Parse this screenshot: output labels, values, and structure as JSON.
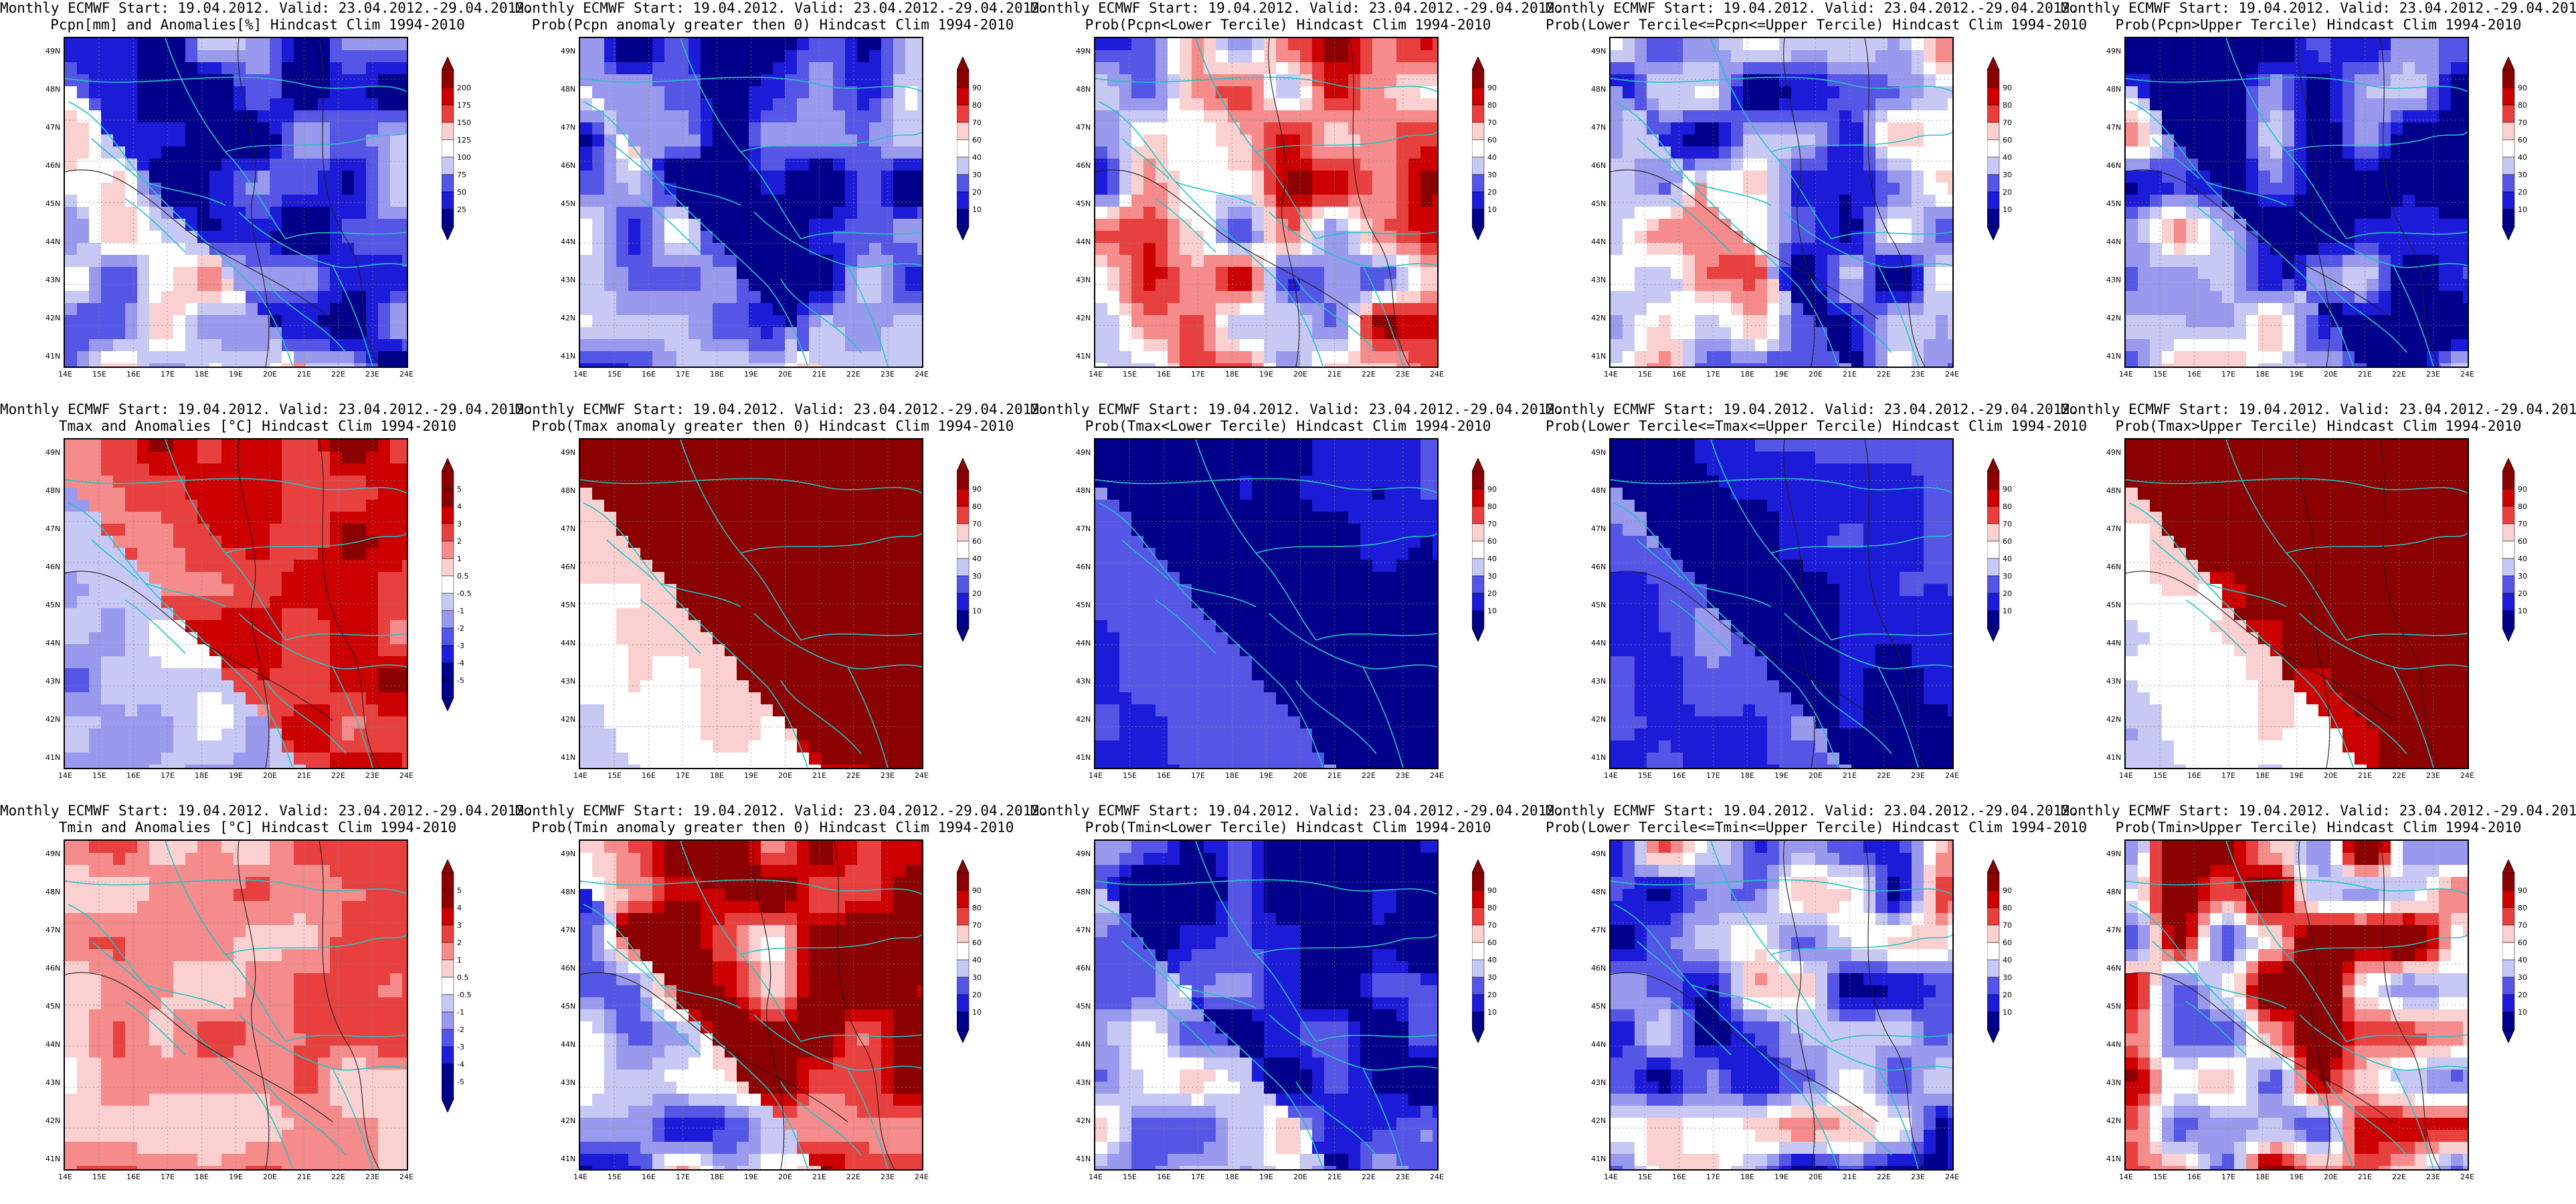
{
  "title_line1": "Monthly ECMWF Start: 19.04.2012. Valid: 23.04.2012.-29.04.2012.",
  "x_ticks": [
    "14E",
    "15E",
    "16E",
    "17E",
    "18E",
    "19E",
    "20E",
    "21E",
    "22E",
    "23E",
    "24E"
  ],
  "y_ticks": [
    "49N",
    "48N",
    "47N",
    "46N",
    "45N",
    "44N",
    "43N",
    "42N",
    "41N"
  ],
  "colorbars": {
    "pcpn_anom": [
      "200",
      "175",
      "150",
      "125",
      "100",
      "75",
      "50",
      "25"
    ],
    "prob": [
      "90",
      "80",
      "70",
      "60",
      "40",
      "30",
      "20",
      "10"
    ],
    "temp_anom": [
      "5",
      "4",
      "3",
      "2",
      "1",
      "0.5",
      "-0.5",
      "-1",
      "-2",
      "-3",
      "-4",
      "-5"
    ]
  },
  "colors": {
    "red_ramp": [
      "#8b0000",
      "#cc0000",
      "#e8403f",
      "#f58b8b",
      "#fbd0d0",
      "#ffffff"
    ],
    "blue_ramp": [
      "#ffffff",
      "#c8c8f5",
      "#9999ee",
      "#5555e6",
      "#1c1cd8",
      "#00008b"
    ],
    "country_border": "#22c5c5",
    "contour": "#202020"
  },
  "panels": [
    {
      "id": "p11",
      "subtitle": "Pcpn[mm] and Anomalies[%] Hindcast Clim 1994-2010",
      "cbar": "pcpn_anom",
      "field": "pcpn_anom"
    },
    {
      "id": "p12",
      "subtitle": "Prob(Pcpn anomaly greater then 0) Hindcast Clim 1994-2010",
      "cbar": "prob",
      "field": "pcpn_prob_pos"
    },
    {
      "id": "p13",
      "subtitle": "Prob(Pcpn<Lower Tercile) Hindcast Clim 1994-2010",
      "cbar": "prob",
      "field": "pcpn_prob_lower"
    },
    {
      "id": "p14",
      "subtitle": "Prob(Lower Tercile<=Pcpn<=Upper Tercile) Hindcast Clim 1994-2010",
      "cbar": "prob",
      "field": "pcpn_prob_mid"
    },
    {
      "id": "p15",
      "subtitle": "Prob(Pcpn>Upper Tercile) Hindcast Clim 1994-2010",
      "cbar": "prob",
      "field": "pcpn_prob_upper"
    },
    {
      "id": "p21",
      "subtitle": "Tmax and Anomalies [°C] Hindcast Clim 1994-2010",
      "cbar": "temp_anom",
      "field": "tmax_anom"
    },
    {
      "id": "p22",
      "subtitle": "Prob(Tmax anomaly greater then 0) Hindcast Clim 1994-2010",
      "cbar": "prob",
      "field": "tmax_prob_pos"
    },
    {
      "id": "p23",
      "subtitle": "Prob(Tmax<Lower Tercile) Hindcast Clim 1994-2010",
      "cbar": "prob",
      "field": "tmax_prob_lower"
    },
    {
      "id": "p24",
      "subtitle": "Prob(Lower Tercile<=Tmax<=Upper Tercile) Hindcast Clim 1994-2010",
      "cbar": "prob",
      "field": "tmax_prob_mid"
    },
    {
      "id": "p25",
      "subtitle": "Prob(Tmax>Upper Tercile) Hindcast Clim 1994-2010",
      "cbar": "prob",
      "field": "tmax_prob_upper"
    },
    {
      "id": "p31",
      "subtitle": "Tmin and Anomalies [°C] Hindcast Clim 1994-2010",
      "cbar": "temp_anom",
      "field": "tmin_anom"
    },
    {
      "id": "p32",
      "subtitle": "Prob(Tmin anomaly greater then 0) Hindcast Clim 1994-2010",
      "cbar": "prob",
      "field": "tmin_prob_pos"
    },
    {
      "id": "p33",
      "subtitle": "Prob(Tmin<Lower Tercile) Hindcast Clim 1994-2010",
      "cbar": "prob",
      "field": "tmin_prob_lower"
    },
    {
      "id": "p34",
      "subtitle": "Prob(Lower Tercile<=Tmin<=Upper Tercile) Hindcast Clim 1994-2010",
      "cbar": "prob",
      "field": "tmin_prob_mid"
    },
    {
      "id": "p35",
      "subtitle": "Prob(Tmin>Upper Tercile) Hindcast Clim 1994-2010",
      "cbar": "prob",
      "field": "tmin_prob_upper"
    }
  ]
}
